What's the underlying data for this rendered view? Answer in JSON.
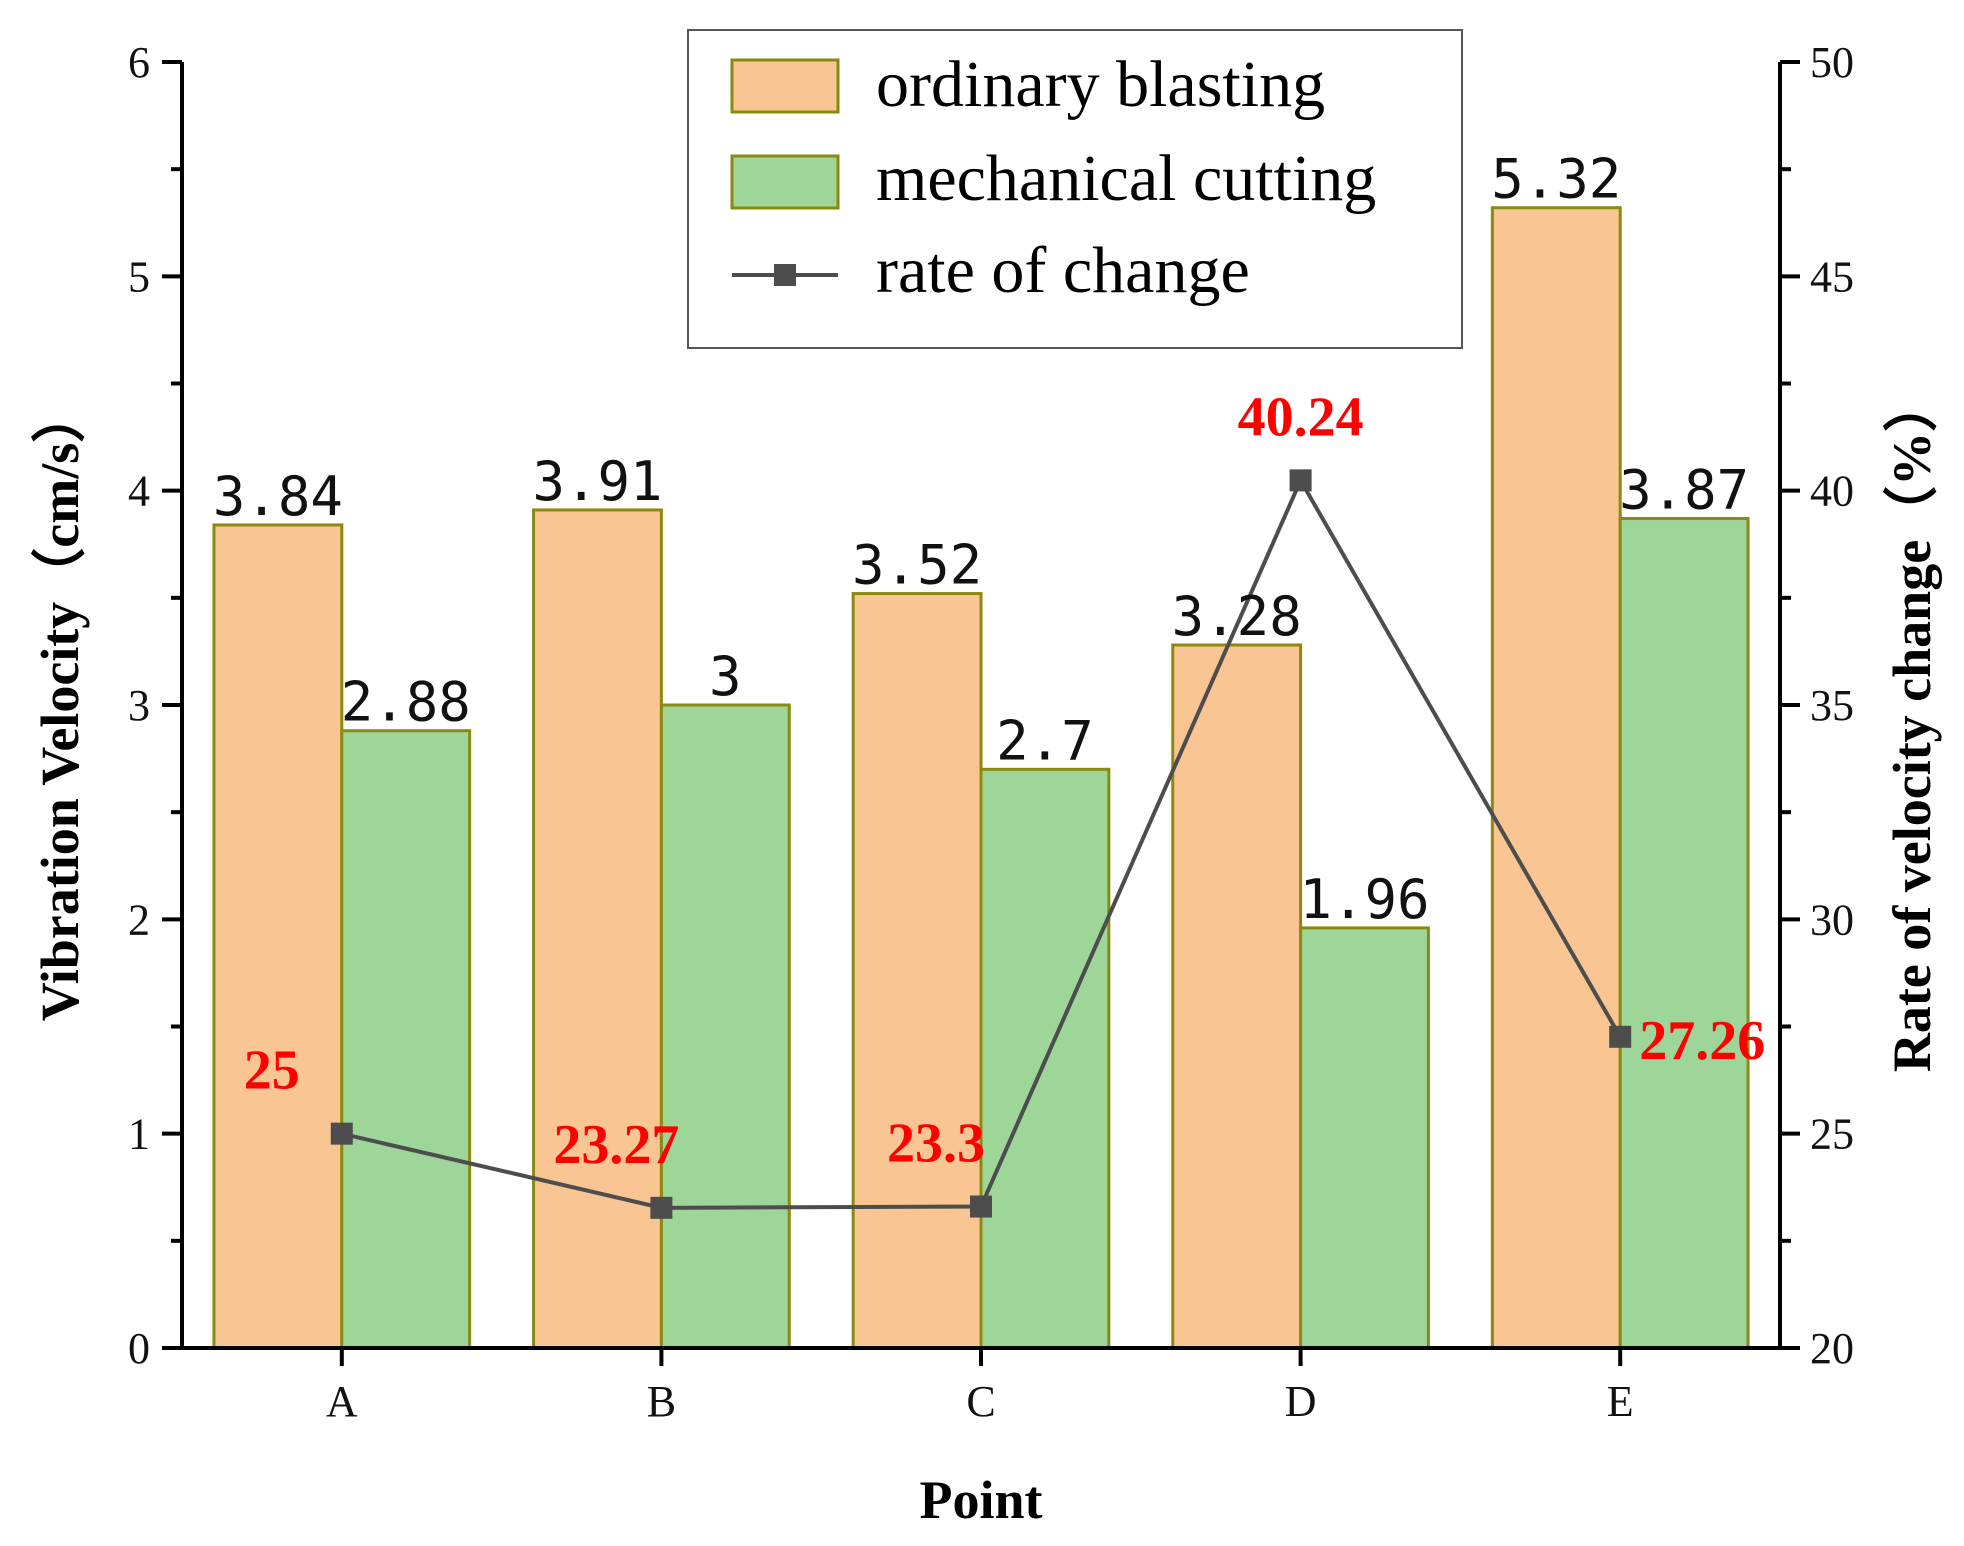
{
  "chart_data": {
    "type": "bar",
    "categories": [
      "A",
      "B",
      "C",
      "D",
      "E"
    ],
    "series": [
      {
        "name": "ordinary blasting",
        "axis": "left",
        "kind": "bar",
        "color": "#f9c592",
        "edge": "#8a8a10",
        "values": [
          3.84,
          3.91,
          3.52,
          3.28,
          5.32
        ],
        "labels": [
          "3.84",
          "3.91",
          "3.52",
          "3.28",
          "5.32"
        ]
      },
      {
        "name": "mechanical cutting",
        "axis": "left",
        "kind": "bar",
        "color": "#9ed69a",
        "edge": "#8a8a10",
        "values": [
          2.88,
          3.0,
          2.7,
          1.96,
          3.87
        ],
        "labels": [
          "2.88",
          "3",
          "2.7",
          "1.96",
          "3.87"
        ]
      },
      {
        "name": "rate of change",
        "axis": "right",
        "kind": "line",
        "color": "#4d4d4d",
        "label_color": "#ff0000",
        "values": [
          25,
          23.27,
          23.3,
          40.24,
          27.26
        ],
        "labels": [
          "25",
          "23.27",
          "23.3",
          "40.24",
          "27.26"
        ]
      }
    ],
    "xlabel": "Point",
    "ylabel": "Vibration Velocity（cm/s）",
    "y2label": "Rate of  velocity change（%）",
    "ylim": [
      0,
      6
    ],
    "y2lim": [
      20,
      50
    ],
    "yticks": [
      "0",
      "1",
      "2",
      "3",
      "4",
      "5",
      "6"
    ],
    "y2ticks": [
      "20",
      "25",
      "30",
      "35",
      "40",
      "45",
      "50"
    ],
    "legend_position": "top-center"
  }
}
